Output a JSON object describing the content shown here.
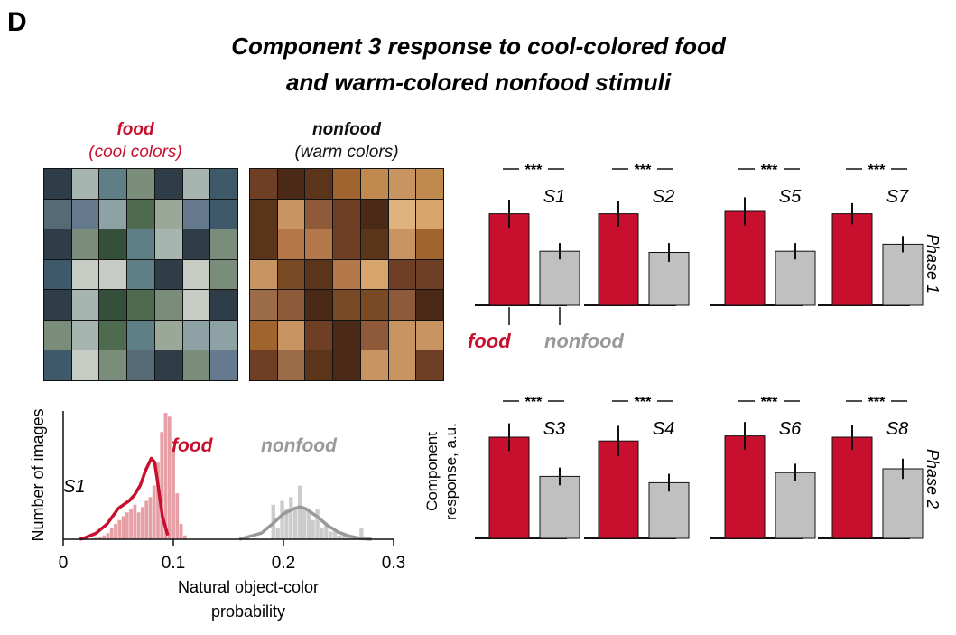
{
  "panel_label": "D",
  "title_line1": "Component 3 response to cool-colored food",
  "title_line2": "and warm-colored nonfood stimuli",
  "food_group": {
    "label": "food",
    "sublabel": "(cool colors)"
  },
  "nonfood_group": {
    "label": "nonfood",
    "sublabel": "(warm colors)"
  },
  "colors": {
    "food": "#c8102e",
    "nonfood": "#999999",
    "food_hist": "#e6a0a5",
    "nonfood_hist": "#cccccc",
    "bar_nonfood": "#c0c0c0"
  },
  "legend": {
    "food": "food",
    "nonfood": "nonfood"
  },
  "significance": "***",
  "phase_labels": {
    "phase1": "Phase 1",
    "phase2": "Phase 2"
  },
  "ylabel_bars": "Component response, a.u.",
  "ylabel_bars_line1": "Component",
  "ylabel_bars_line2": "response, a.u.",
  "chart_data": [
    {
      "type": "bar",
      "panel": "phase-1",
      "subjects": [
        "S1",
        "S2",
        "S5",
        "S7"
      ],
      "series": [
        {
          "name": "food",
          "values": [
            0.78,
            0.78,
            0.8,
            0.78
          ],
          "errors": [
            0.12,
            0.11,
            0.12,
            0.09
          ]
        },
        {
          "name": "nonfood",
          "values": [
            0.46,
            0.45,
            0.46,
            0.52
          ],
          "errors": [
            0.07,
            0.08,
            0.07,
            0.07
          ]
        }
      ]
    },
    {
      "type": "bar",
      "panel": "phase-2",
      "subjects": [
        "S3",
        "S4",
        "S6",
        "S8"
      ],
      "series": [
        {
          "name": "food",
          "values": [
            0.8,
            0.77,
            0.81,
            0.8
          ],
          "errors": [
            0.11,
            0.12,
            0.11,
            0.1
          ]
        },
        {
          "name": "nonfood",
          "values": [
            0.49,
            0.44,
            0.52,
            0.55
          ],
          "errors": [
            0.07,
            0.07,
            0.07,
            0.08
          ]
        }
      ]
    },
    {
      "type": "histogram",
      "subject": "S1",
      "xlabel": "Natural object-color probability",
      "xlabel_line1": "Natural object-color",
      "xlabel_line2": "probability",
      "ylabel": "Number of images",
      "xlim": [
        0,
        0.3
      ],
      "xticks": [
        0,
        0.1,
        0.2,
        0.3
      ],
      "xtick_labels": [
        "0",
        "0.1",
        "0.2",
        "0.3"
      ],
      "series": [
        {
          "name": "food",
          "bin_start": 0.025,
          "bin_width": 0.0035,
          "counts": [
            1,
            2,
            3,
            5,
            8,
            15,
            20,
            25,
            30,
            35,
            40,
            45,
            35,
            42,
            50,
            55,
            70,
            100,
            140,
            165,
            160,
            120,
            60,
            20,
            5
          ],
          "kde_x": [
            0.015,
            0.02,
            0.03,
            0.04,
            0.045,
            0.05,
            0.055,
            0.06,
            0.065,
            0.07,
            0.075,
            0.08,
            0.083,
            0.086,
            0.09,
            0.095
          ],
          "kde_y": [
            0,
            2,
            8,
            20,
            30,
            40,
            45,
            50,
            58,
            70,
            90,
            105,
            100,
            72,
            30,
            5
          ]
        },
        {
          "name": "nonfood",
          "bin_start": 0.185,
          "bin_width": 0.004,
          "counts": [
            0,
            45,
            15,
            50,
            40,
            55,
            40,
            70,
            40,
            40,
            25,
            40,
            15,
            20,
            10,
            10,
            5,
            5,
            5,
            3,
            2,
            15,
            2,
            1,
            1
          ],
          "kde_x": [
            0.16,
            0.18,
            0.19,
            0.2,
            0.21,
            0.215,
            0.22,
            0.23,
            0.24,
            0.25,
            0.26,
            0.27,
            0.28
          ],
          "kde_y": [
            0,
            8,
            20,
            33,
            40,
            42,
            40,
            30,
            18,
            9,
            4,
            1,
            0
          ]
        }
      ]
    }
  ]
}
